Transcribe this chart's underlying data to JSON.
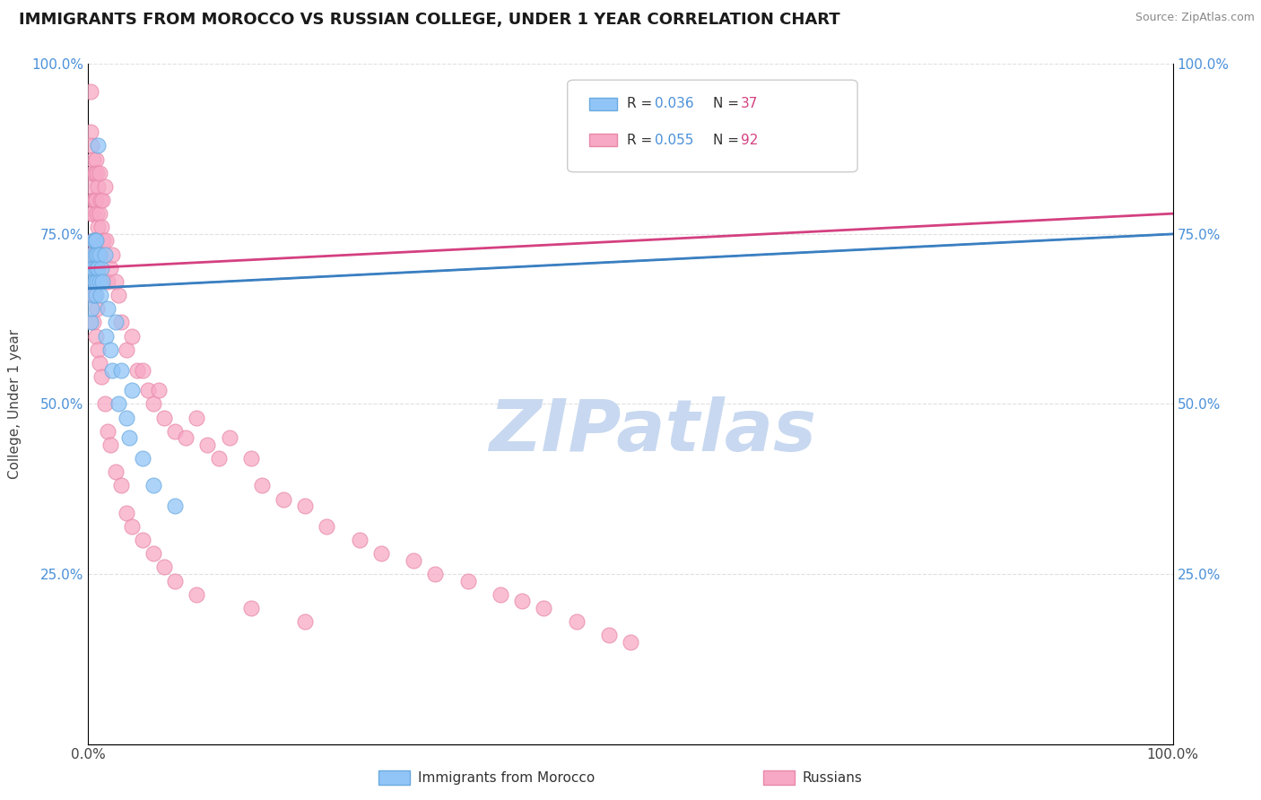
{
  "title": "IMMIGRANTS FROM MOROCCO VS RUSSIAN COLLEGE, UNDER 1 YEAR CORRELATION CHART",
  "source_text": "Source: ZipAtlas.com",
  "ylabel": "College, Under 1 year",
  "xmin": 0.0,
  "xmax": 1.0,
  "ymin": 0.0,
  "ymax": 1.0,
  "morocco_color": "#92C5F7",
  "russian_color": "#F7A8C4",
  "morocco_edge": "#6aaae0",
  "russian_edge": "#e888aa",
  "trendline_morocco_color": "#3a7fc1",
  "trendline_russian_color": "#d44080",
  "watermark_color": "#c8d8f0",
  "background_color": "#ffffff",
  "grid_color": "#e0e0e0",
  "morocco_scatter_x": [
    0.002,
    0.003,
    0.003,
    0.004,
    0.004,
    0.005,
    0.005,
    0.005,
    0.006,
    0.006,
    0.006,
    0.007,
    0.007,
    0.007,
    0.008,
    0.008,
    0.009,
    0.009,
    0.01,
    0.01,
    0.011,
    0.012,
    0.013,
    0.015,
    0.016,
    0.018,
    0.02,
    0.022,
    0.025,
    0.028,
    0.03,
    0.035,
    0.038,
    0.04,
    0.05,
    0.06,
    0.08
  ],
  "morocco_scatter_y": [
    0.62,
    0.64,
    0.7,
    0.68,
    0.72,
    0.74,
    0.7,
    0.66,
    0.72,
    0.68,
    0.74,
    0.7,
    0.66,
    0.74,
    0.72,
    0.68,
    0.88,
    0.7,
    0.68,
    0.72,
    0.66,
    0.7,
    0.68,
    0.72,
    0.6,
    0.64,
    0.58,
    0.55,
    0.62,
    0.5,
    0.55,
    0.48,
    0.45,
    0.52,
    0.42,
    0.38,
    0.35
  ],
  "russian_scatter_x": [
    0.001,
    0.002,
    0.002,
    0.003,
    0.003,
    0.003,
    0.004,
    0.004,
    0.004,
    0.005,
    0.005,
    0.005,
    0.006,
    0.006,
    0.006,
    0.007,
    0.007,
    0.007,
    0.008,
    0.008,
    0.008,
    0.009,
    0.009,
    0.01,
    0.01,
    0.01,
    0.011,
    0.012,
    0.013,
    0.014,
    0.015,
    0.016,
    0.018,
    0.02,
    0.022,
    0.025,
    0.028,
    0.03,
    0.035,
    0.04,
    0.045,
    0.05,
    0.055,
    0.06,
    0.065,
    0.07,
    0.08,
    0.09,
    0.1,
    0.11,
    0.12,
    0.13,
    0.15,
    0.16,
    0.18,
    0.2,
    0.22,
    0.25,
    0.27,
    0.3,
    0.32,
    0.35,
    0.38,
    0.4,
    0.42,
    0.45,
    0.48,
    0.5,
    0.003,
    0.004,
    0.005,
    0.006,
    0.007,
    0.008,
    0.009,
    0.01,
    0.012,
    0.015,
    0.018,
    0.02,
    0.025,
    0.03,
    0.035,
    0.04,
    0.05,
    0.06,
    0.07,
    0.08,
    0.1,
    0.15,
    0.2
  ],
  "russian_scatter_y": [
    0.72,
    0.9,
    0.96,
    0.88,
    0.82,
    0.78,
    0.84,
    0.78,
    0.72,
    0.86,
    0.8,
    0.74,
    0.84,
    0.8,
    0.74,
    0.86,
    0.8,
    0.74,
    0.84,
    0.78,
    0.72,
    0.82,
    0.76,
    0.84,
    0.78,
    0.72,
    0.8,
    0.76,
    0.8,
    0.74,
    0.82,
    0.74,
    0.68,
    0.7,
    0.72,
    0.68,
    0.66,
    0.62,
    0.58,
    0.6,
    0.55,
    0.55,
    0.52,
    0.5,
    0.52,
    0.48,
    0.46,
    0.45,
    0.48,
    0.44,
    0.42,
    0.45,
    0.42,
    0.38,
    0.36,
    0.35,
    0.32,
    0.3,
    0.28,
    0.27,
    0.25,
    0.24,
    0.22,
    0.21,
    0.2,
    0.18,
    0.16,
    0.15,
    0.66,
    0.7,
    0.62,
    0.66,
    0.6,
    0.64,
    0.58,
    0.56,
    0.54,
    0.5,
    0.46,
    0.44,
    0.4,
    0.38,
    0.34,
    0.32,
    0.3,
    0.28,
    0.26,
    0.24,
    0.22,
    0.2,
    0.18
  ]
}
